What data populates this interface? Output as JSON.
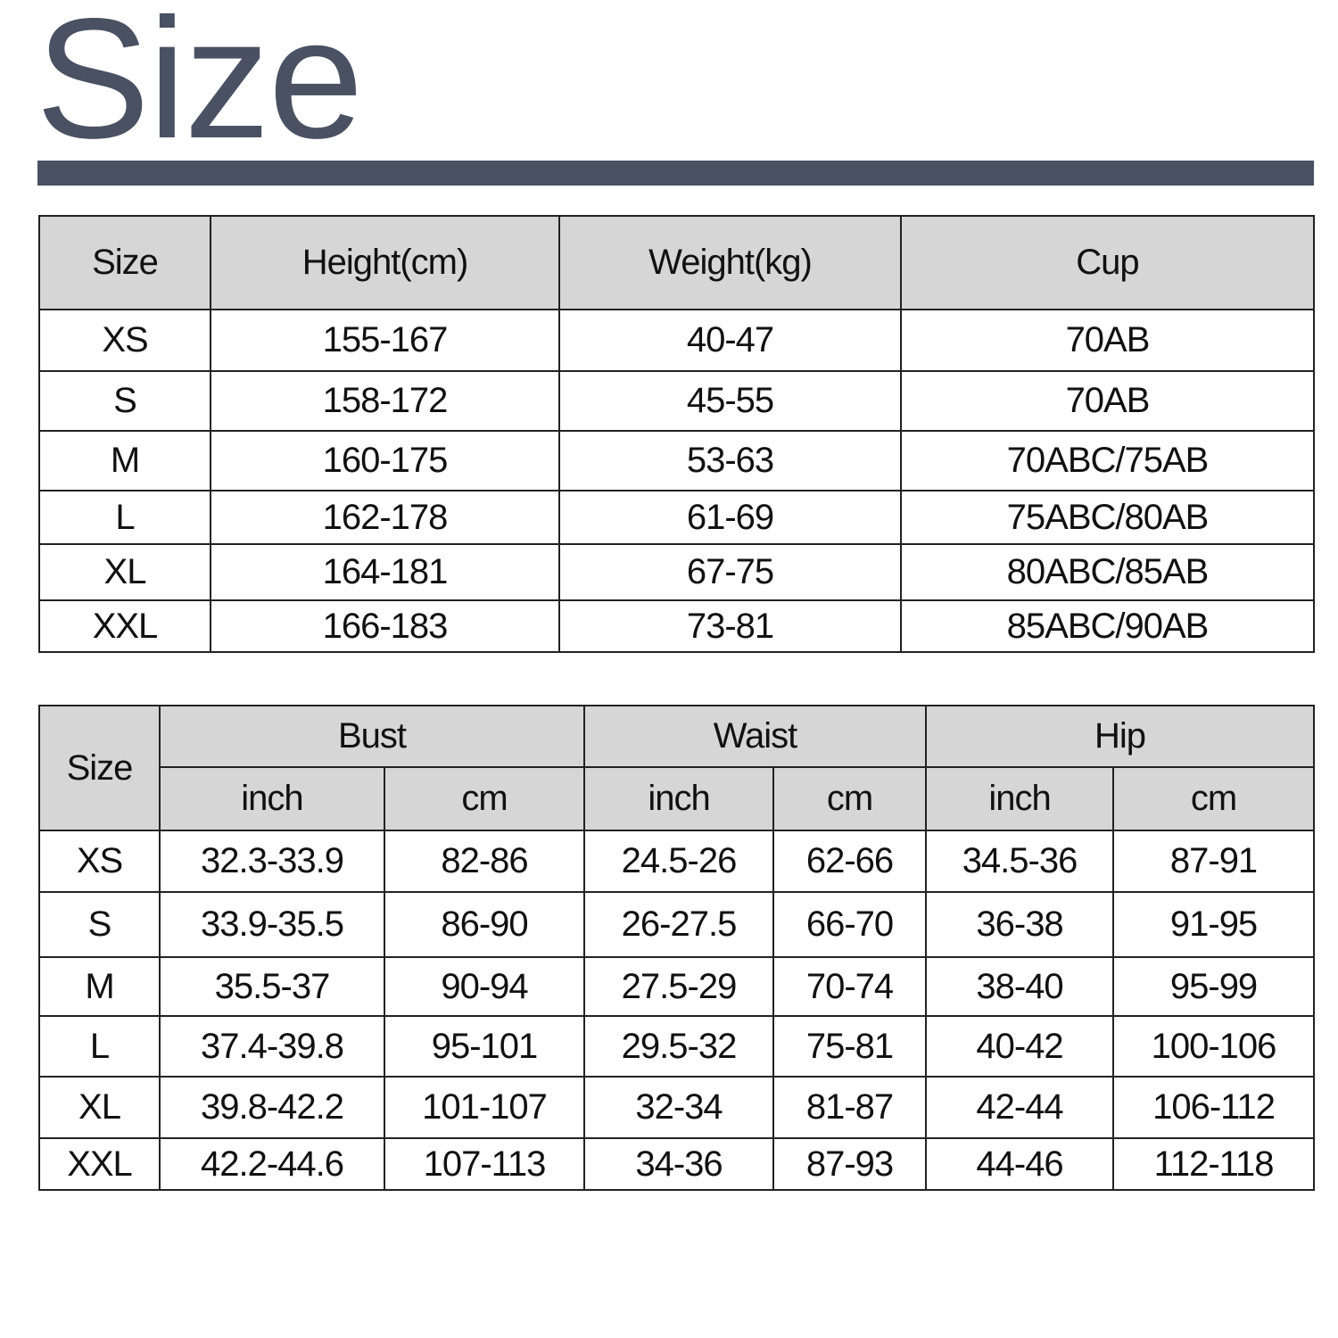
{
  "title": "Size",
  "colors": {
    "title": "#4a5163",
    "header_bg": "#d6d6d6"
  },
  "table1": {
    "headers": [
      "Size",
      "Height(cm)",
      "Weight(kg)",
      "Cup"
    ],
    "rows": [
      [
        "XS",
        "155-167",
        "40-47",
        "70AB"
      ],
      [
        "S",
        "158-172",
        "45-55",
        "70AB"
      ],
      [
        "M",
        "160-175",
        "53-63",
        "70ABC/75AB"
      ],
      [
        "L",
        "162-178",
        "61-69",
        "75ABC/80AB"
      ],
      [
        "XL",
        "164-181",
        "67-75",
        "80ABC/85AB"
      ],
      [
        "XXL",
        "166-183",
        "73-81",
        "85ABC/90AB"
      ]
    ]
  },
  "table2": {
    "size_header": "Size",
    "groups": [
      "Bust",
      "Waist",
      "Hip"
    ],
    "units": [
      "inch",
      "cm",
      "inch",
      "cm",
      "inch",
      "cm"
    ],
    "rows": [
      [
        "XS",
        "32.3-33.9",
        "82-86",
        "24.5-26",
        "62-66",
        "34.5-36",
        "87-91"
      ],
      [
        "S",
        "33.9-35.5",
        "86-90",
        "26-27.5",
        "66-70",
        "36-38",
        "91-95"
      ],
      [
        "M",
        "35.5-37",
        "90-94",
        "27.5-29",
        "70-74",
        "38-40",
        "95-99"
      ],
      [
        "L",
        "37.4-39.8",
        "95-101",
        "29.5-32",
        "75-81",
        "40-42",
        "100-106"
      ],
      [
        "XL",
        "39.8-42.2",
        "101-107",
        "32-34",
        "81-87",
        "42-44",
        "106-112"
      ],
      [
        "XXL",
        "42.2-44.6",
        "107-113",
        "34-36",
        "87-93",
        "44-46",
        "112-118"
      ]
    ]
  }
}
